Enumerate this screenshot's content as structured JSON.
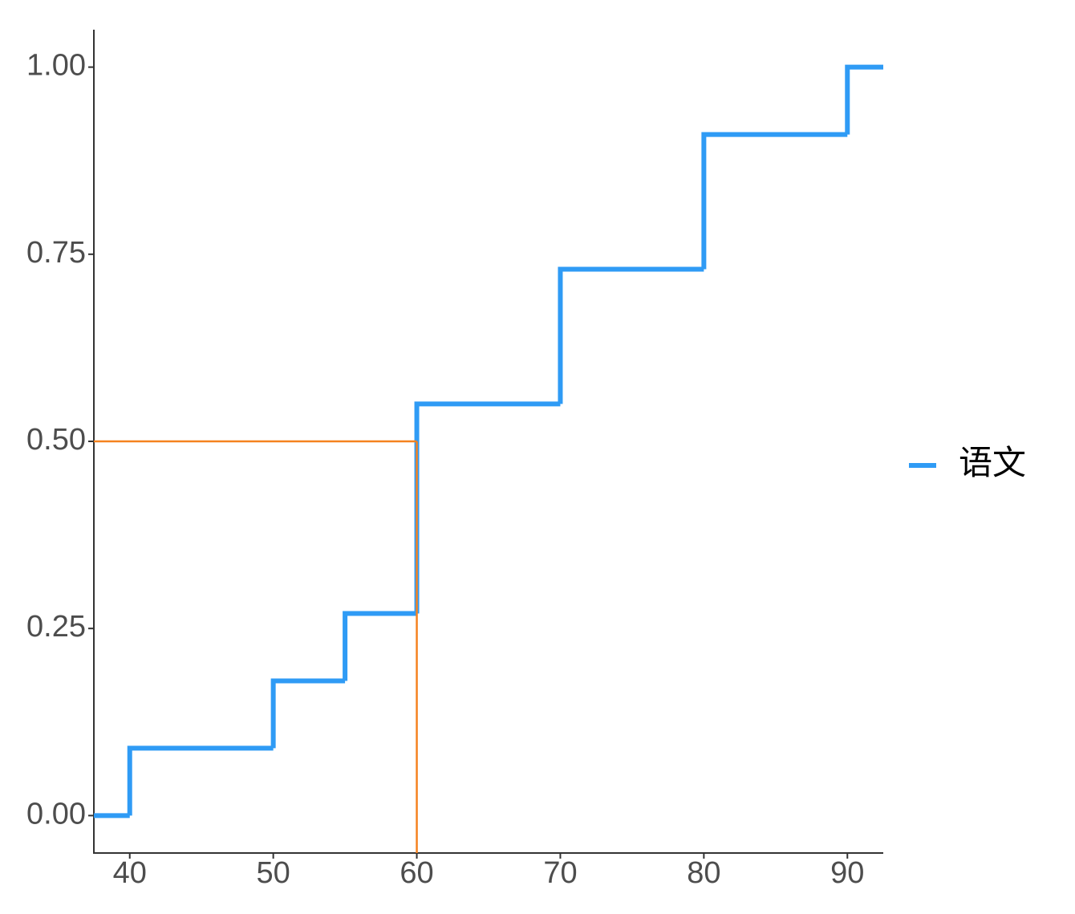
{
  "chart_data": {
    "type": "step",
    "x": [
      40,
      50,
      55,
      60,
      70,
      80,
      90
    ],
    "series": [
      {
        "name": "语文",
        "color": "#2f9bf5",
        "values": [
          0.09,
          0.18,
          0.27,
          0.55,
          0.73,
          0.91,
          1
        ]
      }
    ],
    "xlim": [
      37.5,
      92.5
    ],
    "xticks": [
      40,
      50,
      60,
      70,
      80,
      90
    ],
    "ylim": [
      -0.05,
      1.05
    ],
    "yticks": [
      {
        "value": 0,
        "label": "0.00"
      },
      0.25,
      {
        "value": 0.5,
        "label": "0.50"
      },
      0.75,
      {
        "value": 1,
        "label": "1.00"
      }
    ],
    "reference": {
      "x": 60,
      "y": 0.5,
      "color": "#f5821f"
    },
    "legend": "right"
  }
}
